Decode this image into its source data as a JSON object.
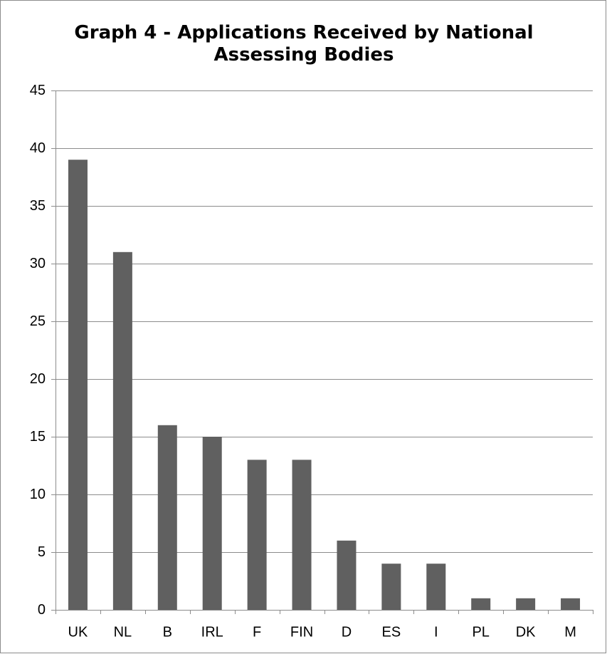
{
  "chart_data": {
    "type": "bar",
    "title": "Graph 4 - Applications Received by National\nAssessing Bodies",
    "xlabel": "",
    "ylabel": "",
    "categories": [
      "UK",
      "NL",
      "B",
      "IRL",
      "F",
      "FIN",
      "D",
      "ES",
      "I",
      "PL",
      "DK",
      "M"
    ],
    "values": [
      39,
      31,
      16,
      15,
      13,
      13,
      6,
      4,
      4,
      1,
      1,
      1
    ],
    "ylim": [
      0,
      45
    ],
    "y_ticks": [
      0,
      5,
      10,
      15,
      20,
      25,
      30,
      35,
      40,
      45
    ],
    "y_tick_labels": [
      "0",
      "5",
      "10",
      "15",
      "20",
      "25",
      "30",
      "35",
      "40",
      "45"
    ],
    "grid": "horizontal",
    "legend": "none",
    "colors": {
      "bar": "#606060",
      "grid": "#8c8c8c",
      "axis": "#8c8c8c",
      "frame": "#8c8c8c"
    }
  }
}
